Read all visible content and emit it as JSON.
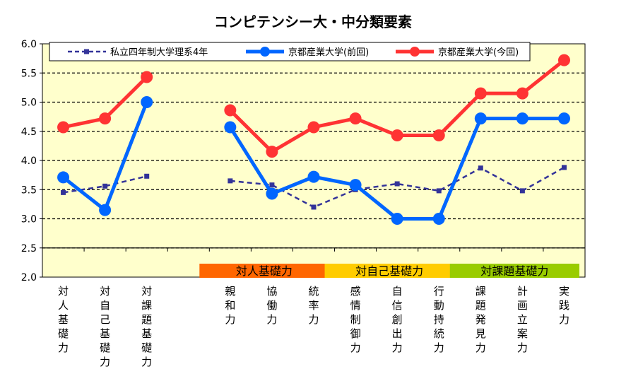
{
  "chart_data": {
    "type": "line",
    "title": "コンピテンシー大・中分類要素",
    "ylim": [
      2.0,
      6.0
    ],
    "yticks": [
      "2.0",
      "2.5",
      "3.0",
      "3.5",
      "4.0",
      "4.5",
      "5.0",
      "5.5",
      "6.0"
    ],
    "grid": true,
    "legend_position": "top",
    "categories": [
      "対人基礎力",
      "対自己基礎力",
      "対課題基礎力",
      "",
      "親和力",
      "協働力",
      "統率力",
      "感情制御力",
      "自信創出力",
      "行動持続力",
      "課題発見力",
      "計画立案力",
      "実践力"
    ],
    "series": [
      {
        "name": "私立四年制大学理系4年",
        "color": "#333399",
        "style": "dashed",
        "values": [
          3.45,
          3.56,
          3.73,
          null,
          3.65,
          3.58,
          3.2,
          3.5,
          3.6,
          3.48,
          3.87,
          3.48,
          3.88
        ]
      },
      {
        "name": "京都産業大学(前回)",
        "color": "#0066ff",
        "style": "solid",
        "values": [
          3.71,
          3.15,
          5.0,
          null,
          4.57,
          3.43,
          3.72,
          3.58,
          3.0,
          3.0,
          4.72,
          4.72,
          4.72
        ]
      },
      {
        "name": "京都産業大学(今回)",
        "color": "#ff3333",
        "style": "solid",
        "values": [
          4.57,
          4.72,
          5.43,
          null,
          4.86,
          4.15,
          4.57,
          4.72,
          4.43,
          4.43,
          5.15,
          5.15,
          5.72
        ]
      }
    ],
    "groups": [
      {
        "label": "対人基礎力",
        "color": "#ff6600",
        "span": [
          4,
          6
        ]
      },
      {
        "label": "対自己基礎力",
        "color": "#ffcc00",
        "span": [
          7,
          9
        ]
      },
      {
        "label": "対課題基礎力",
        "color": "#99cc00",
        "span": [
          10,
          12
        ]
      }
    ]
  }
}
